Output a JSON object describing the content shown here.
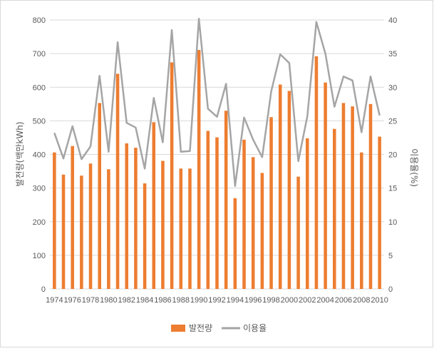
{
  "chart_data": {
    "type": "bar+line",
    "title": "",
    "colors": {
      "bar": "#ED7D31",
      "line": "#A5A5A5",
      "grid": "#D9D9D9",
      "text": "#595959"
    },
    "legend": {
      "placement": "bottom",
      "entries": [
        "발전량",
        "이용율"
      ]
    },
    "grid": {
      "horizontal": true,
      "vertical": false
    },
    "x": [
      1974,
      1975,
      1976,
      1977,
      1978,
      1979,
      1980,
      1981,
      1982,
      1983,
      1984,
      1985,
      1986,
      1987,
      1988,
      1989,
      1990,
      1991,
      1992,
      1993,
      1994,
      1995,
      1996,
      1997,
      1998,
      1999,
      2000,
      2001,
      2002,
      2003,
      2004,
      2005,
      2006,
      2007,
      2008,
      2009,
      2010
    ],
    "x_tick_labels": [
      "1974",
      "1976",
      "1978",
      "1980",
      "1982",
      "1984",
      "1986",
      "1988",
      "1990",
      "1992",
      "1994",
      "1996",
      "1998",
      "2000",
      "2002",
      "2004",
      "2006",
      "2008",
      "2010"
    ],
    "left_axis": {
      "label": "발전량(백만kWh)",
      "ylim": [
        0,
        800
      ],
      "ticks": [
        0,
        100,
        200,
        300,
        400,
        500,
        600,
        700,
        800
      ]
    },
    "right_axis": {
      "label": "이용율(%)",
      "ylim": [
        0,
        40
      ],
      "ticks": [
        0,
        5,
        10,
        15,
        20,
        25,
        30,
        35,
        40
      ]
    },
    "series": [
      {
        "name": "발전량",
        "type": "bar",
        "axis": "left",
        "values": [
          406,
          340,
          425,
          337,
          373,
          553,
          356,
          640,
          433,
          420,
          314,
          496,
          381,
          674,
          358,
          358,
          711,
          470,
          451,
          530,
          270,
          444,
          392,
          345,
          511,
          608,
          589,
          334,
          448,
          692,
          614,
          476,
          553,
          543,
          406,
          550,
          453
        ]
      },
      {
        "name": "이용율",
        "type": "line",
        "axis": "right",
        "values": [
          23.2,
          19.4,
          24.2,
          19.3,
          21.2,
          31.7,
          20.4,
          36.7,
          24.7,
          24.0,
          17.9,
          28.4,
          21.8,
          38.5,
          20.4,
          20.5,
          40.2,
          26.8,
          25.6,
          30.5,
          15.3,
          25.5,
          22.2,
          19.6,
          29.4,
          34.9,
          33.6,
          19.0,
          25.7,
          39.7,
          35.0,
          27.1,
          31.6,
          31.0,
          23.3,
          31.6,
          25.8
        ]
      }
    ]
  }
}
